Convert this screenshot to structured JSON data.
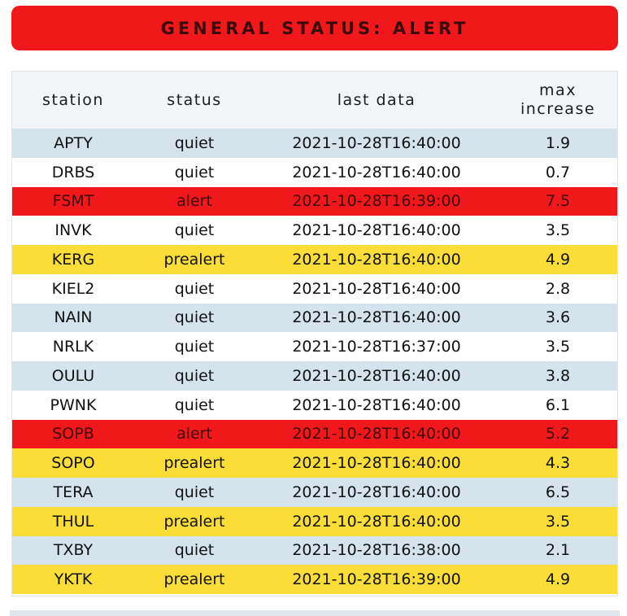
{
  "banner": {
    "text": "GENERAL STATUS: ALERT"
  },
  "table": {
    "headers": {
      "station": "station",
      "status": "status",
      "last_data": "last data",
      "max_increase": "max increase"
    },
    "rows": [
      {
        "station": "APTY",
        "status": "quiet",
        "last_data": "2021-10-28T16:40:00",
        "max_increase": "1.9"
      },
      {
        "station": "DRBS",
        "status": "quiet",
        "last_data": "2021-10-28T16:40:00",
        "max_increase": "0.7"
      },
      {
        "station": "FSMT",
        "status": "alert",
        "last_data": "2021-10-28T16:39:00",
        "max_increase": "7.5"
      },
      {
        "station": "INVK",
        "status": "quiet",
        "last_data": "2021-10-28T16:40:00",
        "max_increase": "3.5"
      },
      {
        "station": "KERG",
        "status": "prealert",
        "last_data": "2021-10-28T16:40:00",
        "max_increase": "4.9"
      },
      {
        "station": "KIEL2",
        "status": "quiet",
        "last_data": "2021-10-28T16:40:00",
        "max_increase": "2.8"
      },
      {
        "station": "NAIN",
        "status": "quiet",
        "last_data": "2021-10-28T16:40:00",
        "max_increase": "3.6"
      },
      {
        "station": "NRLK",
        "status": "quiet",
        "last_data": "2021-10-28T16:37:00",
        "max_increase": "3.5"
      },
      {
        "station": "OULU",
        "status": "quiet",
        "last_data": "2021-10-28T16:40:00",
        "max_increase": "3.8"
      },
      {
        "station": "PWNK",
        "status": "quiet",
        "last_data": "2021-10-28T16:40:00",
        "max_increase": "6.1"
      },
      {
        "station": "SOPB",
        "status": "alert",
        "last_data": "2021-10-28T16:40:00",
        "max_increase": "5.2"
      },
      {
        "station": "SOPO",
        "status": "prealert",
        "last_data": "2021-10-28T16:40:00",
        "max_increase": "4.3"
      },
      {
        "station": "TERA",
        "status": "quiet",
        "last_data": "2021-10-28T16:40:00",
        "max_increase": "6.5"
      },
      {
        "station": "THUL",
        "status": "prealert",
        "last_data": "2021-10-28T16:40:00",
        "max_increase": "3.5"
      },
      {
        "station": "TXBY",
        "status": "quiet",
        "last_data": "2021-10-28T16:38:00",
        "max_increase": "2.1"
      },
      {
        "station": "YKTK",
        "status": "prealert",
        "last_data": "2021-10-28T16:39:00",
        "max_increase": "4.9"
      }
    ]
  },
  "colors": {
    "alert": "#f0181b",
    "prealert": "#fadd37",
    "quiet_shaded": "#d4e3ec",
    "quiet_plain": "#ffffff"
  }
}
